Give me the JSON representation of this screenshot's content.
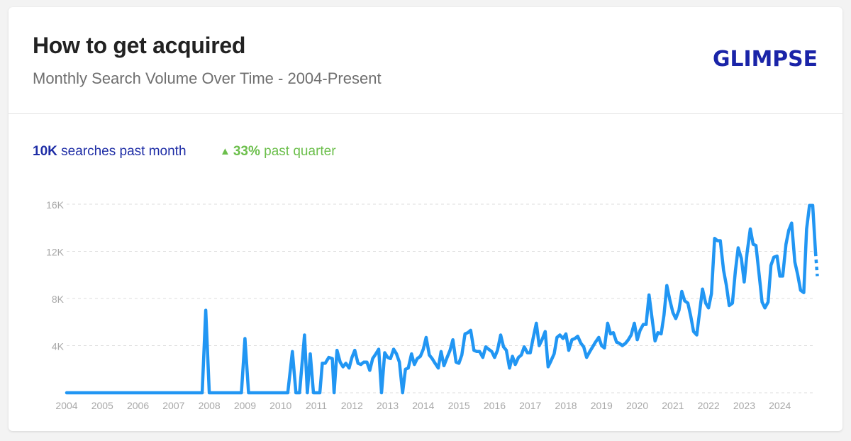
{
  "header": {
    "title": "How to get acquired",
    "subtitle": "Monthly Search Volume Over Time - 2004-Present",
    "logo_text": "GLIMPSE",
    "logo_color": "#1a24a8"
  },
  "stats": {
    "searches_value": "10K",
    "searches_label": "searches past month",
    "growth_value": "33%",
    "growth_label": "past quarter",
    "searches_color": "#1f2ea6",
    "growth_color": "#6cbf4c",
    "growth_icon": "triangle-up-icon"
  },
  "chart_data": {
    "type": "line",
    "title": "",
    "xlabel": "",
    "ylabel": "",
    "ylim": [
      0,
      16000
    ],
    "xlim": [
      2004,
      2025
    ],
    "yticks": [
      4000,
      8000,
      12000,
      16000
    ],
    "ytick_labels": [
      "4K",
      "8K",
      "12K",
      "16K"
    ],
    "xticks": [
      "2004",
      "2005",
      "2006",
      "2007",
      "2008",
      "2009",
      "2010",
      "2011",
      "2012",
      "2013",
      "2014",
      "2015",
      "2016",
      "2017",
      "2018",
      "2019",
      "2020",
      "2021",
      "2022",
      "2023",
      "2024"
    ],
    "grid": "horizontal-dashed",
    "line_color": "#2196f3",
    "series": [
      {
        "name": "",
        "points": [
          [
            2004.0,
            0
          ],
          [
            2007.8,
            0
          ],
          [
            2007.9,
            7000
          ],
          [
            2008.0,
            0
          ],
          [
            2008.9,
            0
          ],
          [
            2009.0,
            4600
          ],
          [
            2009.1,
            0
          ],
          [
            2010.2,
            0
          ],
          [
            2010.33,
            3500
          ],
          [
            2010.43,
            0
          ],
          [
            2010.53,
            0
          ],
          [
            2010.67,
            4900
          ],
          [
            2010.75,
            0
          ],
          [
            2010.83,
            3300
          ],
          [
            2010.92,
            0
          ],
          [
            2011.1,
            0
          ],
          [
            2011.17,
            2500
          ],
          [
            2011.25,
            2500
          ],
          [
            2011.35,
            3000
          ],
          [
            2011.45,
            2900
          ],
          [
            2011.5,
            0
          ],
          [
            2011.58,
            3600
          ],
          [
            2011.67,
            2600
          ],
          [
            2011.75,
            2200
          ],
          [
            2011.83,
            2500
          ],
          [
            2011.92,
            2100
          ],
          [
            2012.0,
            3000
          ],
          [
            2012.08,
            3600
          ],
          [
            2012.17,
            2500
          ],
          [
            2012.25,
            2400
          ],
          [
            2012.33,
            2600
          ],
          [
            2012.42,
            2600
          ],
          [
            2012.5,
            1900
          ],
          [
            2012.58,
            2900
          ],
          [
            2012.67,
            3300
          ],
          [
            2012.75,
            3700
          ],
          [
            2012.83,
            0
          ],
          [
            2012.92,
            3400
          ],
          [
            2013.0,
            3000
          ],
          [
            2013.08,
            2900
          ],
          [
            2013.17,
            3700
          ],
          [
            2013.25,
            3300
          ],
          [
            2013.33,
            2600
          ],
          [
            2013.42,
            0
          ],
          [
            2013.5,
            2000
          ],
          [
            2013.58,
            2100
          ],
          [
            2013.67,
            3300
          ],
          [
            2013.75,
            2400
          ],
          [
            2013.83,
            2900
          ],
          [
            2013.92,
            3100
          ],
          [
            2014.0,
            3700
          ],
          [
            2014.08,
            4700
          ],
          [
            2014.17,
            3200
          ],
          [
            2014.25,
            2900
          ],
          [
            2014.33,
            2500
          ],
          [
            2014.42,
            2100
          ],
          [
            2014.5,
            3500
          ],
          [
            2014.58,
            2300
          ],
          [
            2014.67,
            3000
          ],
          [
            2014.75,
            3600
          ],
          [
            2014.83,
            4500
          ],
          [
            2014.92,
            2600
          ],
          [
            2015.0,
            2500
          ],
          [
            2015.08,
            3200
          ],
          [
            2015.17,
            5000
          ],
          [
            2015.25,
            5100
          ],
          [
            2015.33,
            5300
          ],
          [
            2015.42,
            3600
          ],
          [
            2015.5,
            3500
          ],
          [
            2015.58,
            3500
          ],
          [
            2015.67,
            3000
          ],
          [
            2015.75,
            3900
          ],
          [
            2015.83,
            3700
          ],
          [
            2015.92,
            3500
          ],
          [
            2016.0,
            3000
          ],
          [
            2016.08,
            3600
          ],
          [
            2016.17,
            4900
          ],
          [
            2016.25,
            3900
          ],
          [
            2016.33,
            3600
          ],
          [
            2016.42,
            2100
          ],
          [
            2016.5,
            3100
          ],
          [
            2016.58,
            2400
          ],
          [
            2016.67,
            3000
          ],
          [
            2016.75,
            3200
          ],
          [
            2016.83,
            3900
          ],
          [
            2016.92,
            3400
          ],
          [
            2017.0,
            3400
          ],
          [
            2017.08,
            4600
          ],
          [
            2017.17,
            5900
          ],
          [
            2017.25,
            4000
          ],
          [
            2017.33,
            4500
          ],
          [
            2017.42,
            5200
          ],
          [
            2017.5,
            2200
          ],
          [
            2017.58,
            2700
          ],
          [
            2017.67,
            3300
          ],
          [
            2017.75,
            4700
          ],
          [
            2017.83,
            4900
          ],
          [
            2017.92,
            4600
          ],
          [
            2018.0,
            5000
          ],
          [
            2018.08,
            3600
          ],
          [
            2018.17,
            4500
          ],
          [
            2018.25,
            4600
          ],
          [
            2018.33,
            4800
          ],
          [
            2018.42,
            4200
          ],
          [
            2018.5,
            3900
          ],
          [
            2018.58,
            3000
          ],
          [
            2018.67,
            3500
          ],
          [
            2018.75,
            3900
          ],
          [
            2018.83,
            4300
          ],
          [
            2018.92,
            4700
          ],
          [
            2019.0,
            4000
          ],
          [
            2019.08,
            3800
          ],
          [
            2019.17,
            5900
          ],
          [
            2019.25,
            5000
          ],
          [
            2019.33,
            5100
          ],
          [
            2019.42,
            4300
          ],
          [
            2019.5,
            4200
          ],
          [
            2019.58,
            4000
          ],
          [
            2019.67,
            4200
          ],
          [
            2019.75,
            4500
          ],
          [
            2019.83,
            4900
          ],
          [
            2019.92,
            5900
          ],
          [
            2020.0,
            4500
          ],
          [
            2020.08,
            5300
          ],
          [
            2020.17,
            5800
          ],
          [
            2020.25,
            5800
          ],
          [
            2020.33,
            8300
          ],
          [
            2020.42,
            6200
          ],
          [
            2020.5,
            4400
          ],
          [
            2020.58,
            5100
          ],
          [
            2020.67,
            5000
          ],
          [
            2020.75,
            6600
          ],
          [
            2020.83,
            9100
          ],
          [
            2020.92,
            7800
          ],
          [
            2021.0,
            6800
          ],
          [
            2021.08,
            6300
          ],
          [
            2021.17,
            7000
          ],
          [
            2021.25,
            8600
          ],
          [
            2021.33,
            7800
          ],
          [
            2021.42,
            7600
          ],
          [
            2021.5,
            6500
          ],
          [
            2021.58,
            5200
          ],
          [
            2021.67,
            4900
          ],
          [
            2021.75,
            6900
          ],
          [
            2021.83,
            8800
          ],
          [
            2021.92,
            7600
          ],
          [
            2022.0,
            7200
          ],
          [
            2022.08,
            8400
          ],
          [
            2022.17,
            13100
          ],
          [
            2022.25,
            12900
          ],
          [
            2022.33,
            12900
          ],
          [
            2022.42,
            10400
          ],
          [
            2022.5,
            9100
          ],
          [
            2022.58,
            7400
          ],
          [
            2022.67,
            7600
          ],
          [
            2022.75,
            10300
          ],
          [
            2022.83,
            12300
          ],
          [
            2022.92,
            11400
          ],
          [
            2023.0,
            9400
          ],
          [
            2023.08,
            11900
          ],
          [
            2023.17,
            13900
          ],
          [
            2023.25,
            12600
          ],
          [
            2023.33,
            12500
          ],
          [
            2023.42,
            10000
          ],
          [
            2023.5,
            7700
          ],
          [
            2023.58,
            7200
          ],
          [
            2023.67,
            7700
          ],
          [
            2023.75,
            10800
          ],
          [
            2023.83,
            11500
          ],
          [
            2023.92,
            11600
          ],
          [
            2024.0,
            9900
          ],
          [
            2024.08,
            9900
          ],
          [
            2024.17,
            12600
          ],
          [
            2024.25,
            13800
          ],
          [
            2024.33,
            14400
          ],
          [
            2024.42,
            11100
          ],
          [
            2024.5,
            10000
          ],
          [
            2024.58,
            8700
          ],
          [
            2024.67,
            8500
          ],
          [
            2024.75,
            13900
          ],
          [
            2024.83,
            15900
          ],
          [
            2024.92,
            15900
          ],
          [
            2025.0,
            11900
          ]
        ],
        "projected": [
          [
            2025.0,
            11900
          ],
          [
            2025.05,
            9900
          ]
        ]
      }
    ]
  }
}
